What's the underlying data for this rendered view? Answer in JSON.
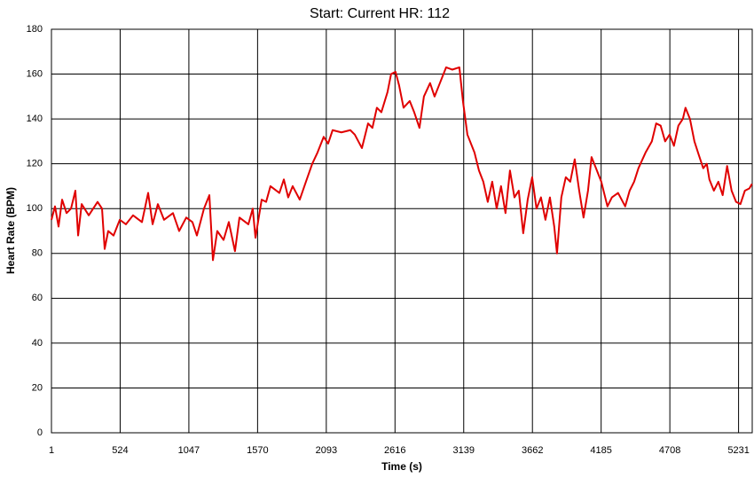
{
  "chart_data": {
    "type": "line",
    "title": "Start: Current HR: 112",
    "x_label": "Time (s)",
    "y_label": "Heart Rate (BPM)",
    "x": [
      1,
      28,
      55,
      82,
      116,
      150,
      183,
      204,
      231,
      285,
      352,
      386,
      406,
      433,
      474,
      521,
      568,
      622,
      690,
      737,
      771,
      811,
      858,
      926,
      973,
      1027,
      1074,
      1108,
      1162,
      1203,
      1230,
      1263,
      1311,
      1351,
      1398,
      1432,
      1500,
      1533,
      1554,
      1601,
      1635,
      1668,
      1736,
      1770,
      1803,
      1837,
      1891,
      1938,
      1986,
      2026,
      2073,
      2107,
      2141,
      2208,
      2276,
      2310,
      2364,
      2411,
      2444,
      2478,
      2512,
      2559,
      2586,
      2620,
      2647,
      2681,
      2728,
      2762,
      2802,
      2836,
      2883,
      2917,
      2951,
      3005,
      3052,
      3106,
      3133,
      3167,
      3221,
      3255,
      3288,
      3322,
      3356,
      3390,
      3423,
      3457,
      3491,
      3525,
      3558,
      3592,
      3626,
      3660,
      3693,
      3727,
      3761,
      3795,
      3828,
      3849,
      3882,
      3916,
      3950,
      3984,
      4018,
      4051,
      4085,
      4112,
      4146,
      4186,
      4233,
      4267,
      4314,
      4368,
      4402,
      4436,
      4469,
      4523,
      4571,
      4604,
      4638,
      4672,
      4706,
      4739,
      4773,
      4807,
      4827,
      4861,
      4895,
      4928,
      4962,
      4989,
      5009,
      5043,
      5077,
      5110,
      5144,
      5178,
      5212,
      5245,
      5279,
      5313,
      5333
    ],
    "series": [
      {
        "name": "Heart Rate",
        "color": "#e00000",
        "values": [
          95,
          101,
          92,
          104,
          98,
          100,
          108,
          88,
          102,
          97,
          103,
          100,
          82,
          90,
          88,
          95,
          93,
          97,
          94,
          107,
          93,
          102,
          95,
          98,
          90,
          96,
          94,
          88,
          100,
          106,
          77,
          90,
          86,
          94,
          81,
          96,
          93,
          100,
          87,
          104,
          103,
          110,
          107,
          113,
          105,
          110,
          104,
          112,
          120,
          125,
          132,
          129,
          135,
          134,
          135,
          133,
          127,
          138,
          136,
          145,
          143,
          152,
          160,
          161,
          155,
          145,
          148,
          143,
          136,
          150,
          156,
          150,
          155,
          163,
          162,
          163,
          148,
          133,
          125,
          117,
          112,
          103,
          112,
          100,
          110,
          98,
          117,
          105,
          108,
          89,
          104,
          114,
          100,
          105,
          95,
          105,
          92,
          80,
          105,
          114,
          112,
          122,
          108,
          96,
          108,
          123,
          118,
          112,
          101,
          105,
          107,
          101,
          108,
          112,
          118,
          125,
          130,
          138,
          137,
          130,
          133,
          128,
          137,
          140,
          145,
          140,
          130,
          124,
          118,
          120,
          113,
          108,
          112,
          106,
          119,
          108,
          103,
          102,
          108,
          109,
          111
        ]
      }
    ],
    "xlim": [
      1,
      5335
    ],
    "ylim": [
      0,
      180
    ],
    "xticks": [
      1,
      524,
      1047,
      1570,
      2093,
      2616,
      3139,
      3662,
      4185,
      4708,
      5231
    ],
    "yticks": [
      0,
      20,
      40,
      60,
      80,
      100,
      120,
      140,
      160,
      180
    ],
    "grid": true
  }
}
